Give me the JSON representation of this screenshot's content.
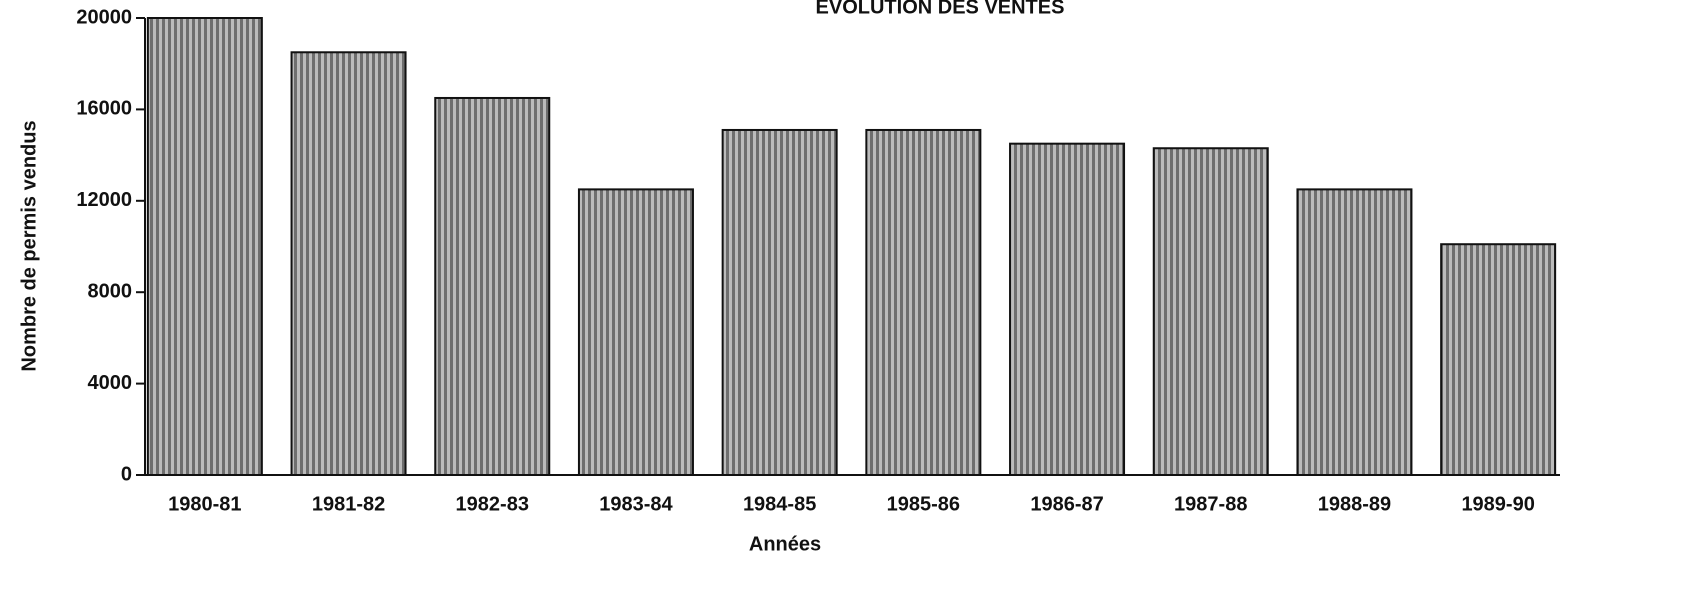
{
  "chart_data": {
    "type": "bar",
    "title": "EVOLUTION DES VENTES",
    "x_label": "Années",
    "y_label": "Nombre de permis vendus",
    "categories": [
      "1980-81",
      "1981-82",
      "1982-83",
      "1983-84",
      "1984-85",
      "1985-86",
      "1986-87",
      "1987-88",
      "1988-89",
      "1989-90"
    ],
    "values": [
      20000,
      18500,
      16500,
      12500,
      15100,
      15100,
      14500,
      14300,
      12500,
      10100
    ],
    "color": "#6e6e6e",
    "ylim": [
      0,
      20000
    ],
    "yticks": [
      0,
      4000,
      8000,
      12000,
      16000,
      20000
    ],
    "grid": false
  }
}
